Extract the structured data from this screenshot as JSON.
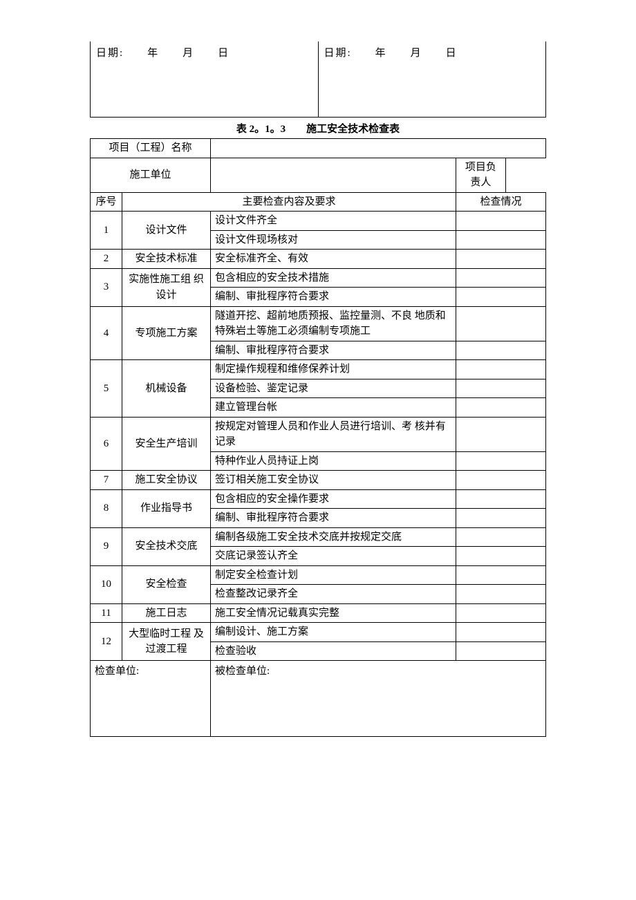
{
  "dateBox": {
    "left": "日期:　　年　　月　　日",
    "right": "日期:　　年　　月　　日"
  },
  "title": "表 2。1。3　　施工安全技术检查表",
  "header": {
    "projectNameLabel": "项目（工程）名称",
    "constructionUnitLabel": "施工单位",
    "projectLeaderLabel": "项目负责人"
  },
  "columnHeaders": {
    "seq": "序号",
    "content": "主要检查内容及要求",
    "status": "检查情况"
  },
  "rows": [
    {
      "seq": "1",
      "cat": "设计文件",
      "items": [
        "设计文件齐全",
        "设计文件现场核对"
      ]
    },
    {
      "seq": "2",
      "cat": "安全技术标准",
      "items": [
        "安全标准齐全、有效"
      ]
    },
    {
      "seq": "3",
      "cat": "实施性施工组 织设计",
      "items": [
        "包含相应的安全技术措施",
        "编制、审批程序符合要求"
      ]
    },
    {
      "seq": "4",
      "cat": "专项施工方案",
      "items": [
        "隧道开挖、超前地质预报、监控量测、不良 地质和特殊岩土等施工必须编制专项施工",
        "编制、审批程序符合要求"
      ]
    },
    {
      "seq": "5",
      "cat": "机械设备",
      "items": [
        "制定操作规程和维修保养计划",
        "设备检验、鉴定记录",
        "建立管理台帐"
      ]
    },
    {
      "seq": "6",
      "cat": "安全生产培训",
      "items": [
        "按规定对管理人员和作业人员进行培训、考 核并有记录",
        "特种作业人员持证上岗"
      ]
    },
    {
      "seq": "7",
      "cat": "施工安全协议",
      "items": [
        "签订相关施工安全协议"
      ]
    },
    {
      "seq": "8",
      "cat": "作业指导书",
      "items": [
        "包含相应的安全操作要求",
        "编制、审批程序符合要求"
      ]
    },
    {
      "seq": "9",
      "cat": "安全技术交底",
      "items": [
        "编制各级施工安全技术交底并按规定交底",
        "交底记录签认齐全"
      ]
    },
    {
      "seq": "10",
      "cat": "安全检查",
      "items": [
        "制定安全检查计划",
        "检查整改记录齐全"
      ]
    },
    {
      "seq": "11",
      "cat": "施工日志",
      "items": [
        "施工安全情况记载真实完整"
      ]
    },
    {
      "seq": "12",
      "cat": "大型临时工程 及过渡工程",
      "items": [
        "编制设计、施工方案",
        "检查验收"
      ]
    }
  ],
  "footer": {
    "inspectingUnit": "检查单位:",
    "inspectedUnit": "被检查单位:"
  }
}
